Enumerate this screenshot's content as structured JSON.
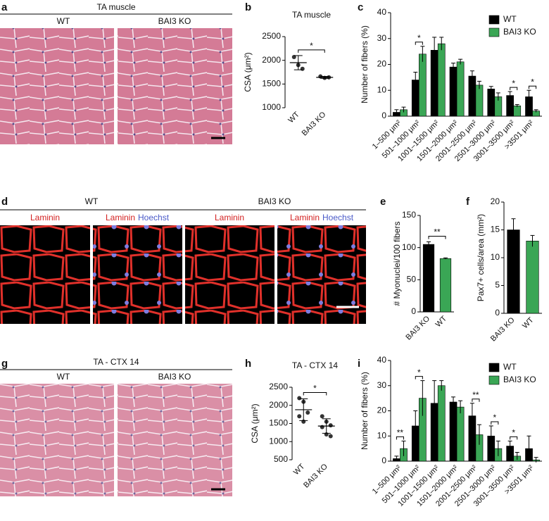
{
  "image_panels": [
    {
      "panel": "a",
      "title": "TA muscle",
      "labels": [
        "WT",
        "BAI3 KO"
      ]
    },
    {
      "panel": "d",
      "labels": [
        "WT",
        "BAI3 KO"
      ],
      "stains": [
        "Laminin",
        "Laminin",
        "Hoechst",
        "Laminin",
        "Laminin",
        "Hoechst"
      ]
    },
    {
      "panel": "g",
      "title": "TA - CTX 14",
      "labels": [
        "WT",
        "BAI3 KO"
      ]
    }
  ],
  "chart_data": [
    {
      "panel": "b",
      "type": "dot",
      "title": "TA muscle",
      "ylabel": "CSA (μm²)",
      "categories": [
        "WT",
        "BAI3 KO"
      ],
      "points": [
        [
          2070,
          1900,
          1820
        ],
        [
          1660,
          1630,
          1640
        ]
      ],
      "means": [
        1950,
        1640
      ],
      "errors": [
        150,
        20
      ],
      "color": "#333333",
      "ylim": [
        1000,
        2500
      ],
      "yticks": [
        1000,
        1500,
        2000,
        2500
      ],
      "significance": "*"
    },
    {
      "panel": "c",
      "type": "bar",
      "ylabel": "Number of fibers (%)",
      "categories": [
        "1–500 μm²",
        "501–1000 μm²",
        "1001–1500 μm²",
        "1501–2000 μm²",
        "2001–2500 μm²",
        "2501–3000 μm²",
        "3001–3500 μm²",
        ">3501 μm²"
      ],
      "series": [
        {
          "name": "WT",
          "color": "#000000",
          "values": [
            1.5,
            14,
            25.5,
            19,
            15.5,
            10.5,
            8,
            7.5
          ],
          "errors": [
            1,
            3,
            5,
            1.5,
            2,
            1,
            1.5,
            2.5
          ]
        },
        {
          "name": "BAI3 KO",
          "color": "#3aa655",
          "values": [
            2.5,
            24,
            28,
            21,
            12,
            7.5,
            4,
            2
          ],
          "errors": [
            1,
            3,
            2.5,
            1,
            1.5,
            1.5,
            0.5,
            0.5
          ]
        }
      ],
      "significance": [
        null,
        "*",
        null,
        null,
        null,
        null,
        "*",
        "*"
      ],
      "ylim": [
        0,
        40
      ],
      "yticks": [
        0,
        10,
        20,
        30,
        40
      ],
      "legend": "top-right"
    },
    {
      "panel": "e",
      "type": "bar",
      "ylabel": "# Myonuclei/100 fibers",
      "categories": [
        "BAI3 KO",
        "WT"
      ],
      "values": [
        105,
        83
      ],
      "errors": [
        4,
        1
      ],
      "colors": [
        "#000000",
        "#3aa655"
      ],
      "significance": "**",
      "ylim": [
        0,
        150
      ],
      "yticks": [
        0,
        50,
        100,
        150
      ]
    },
    {
      "panel": "f",
      "type": "bar",
      "ylabel": "Pax7+ cells/area (mm²)",
      "categories": [
        "BAI3 KO",
        "WT"
      ],
      "values": [
        15,
        13
      ],
      "errors": [
        2,
        1
      ],
      "colors": [
        "#000000",
        "#3aa655"
      ],
      "ylim": [
        0,
        20
      ],
      "yticks": [
        0,
        5,
        10,
        15,
        20
      ]
    },
    {
      "panel": "h",
      "type": "dot",
      "title": "TA - CTX 14",
      "ylabel": "CSA (μm²)",
      "categories": [
        "WT",
        "BAI3 KO"
      ],
      "points": [
        [
          2200,
          2100,
          1800,
          1700,
          1550
        ],
        [
          1700,
          1550,
          1450,
          1400,
          1200,
          1150
        ]
      ],
      "means": [
        1880,
        1430
      ],
      "errors": [
        300,
        200
      ],
      "color": "#333333",
      "ylim": [
        500,
        2500
      ],
      "yticks": [
        500,
        1000,
        1500,
        2000,
        2500
      ],
      "significance": "*"
    },
    {
      "panel": "i",
      "type": "bar",
      "ylabel": "Number of fibers (%)",
      "categories": [
        "1–500 μm²",
        "501–1000 μm²",
        "1001–1500 μm²",
        "1501–2000 μm²",
        "2001–2500 μm²",
        "2501–3000 μm²",
        "3001–3500 μm²",
        ">3501 μm²"
      ],
      "series": [
        {
          "name": "WT",
          "color": "#000000",
          "values": [
            1,
            14,
            23,
            23.5,
            18,
            10,
            6,
            5
          ],
          "errors": [
            1,
            6,
            9,
            2,
            5,
            4,
            2,
            5
          ]
        },
        {
          "name": "BAI3 KO",
          "color": "#3aa655",
          "values": [
            5,
            25,
            30,
            21.5,
            10.5,
            5,
            2,
            0.5
          ],
          "errors": [
            3,
            7,
            2,
            2.5,
            4,
            3,
            1.5,
            1
          ]
        }
      ],
      "significance": [
        "**",
        "*",
        null,
        null,
        "**",
        "*",
        "*",
        null
      ],
      "ylim": [
        0,
        40
      ],
      "yticks": [
        0,
        10,
        20,
        30,
        40
      ],
      "legend": "top-right"
    }
  ]
}
